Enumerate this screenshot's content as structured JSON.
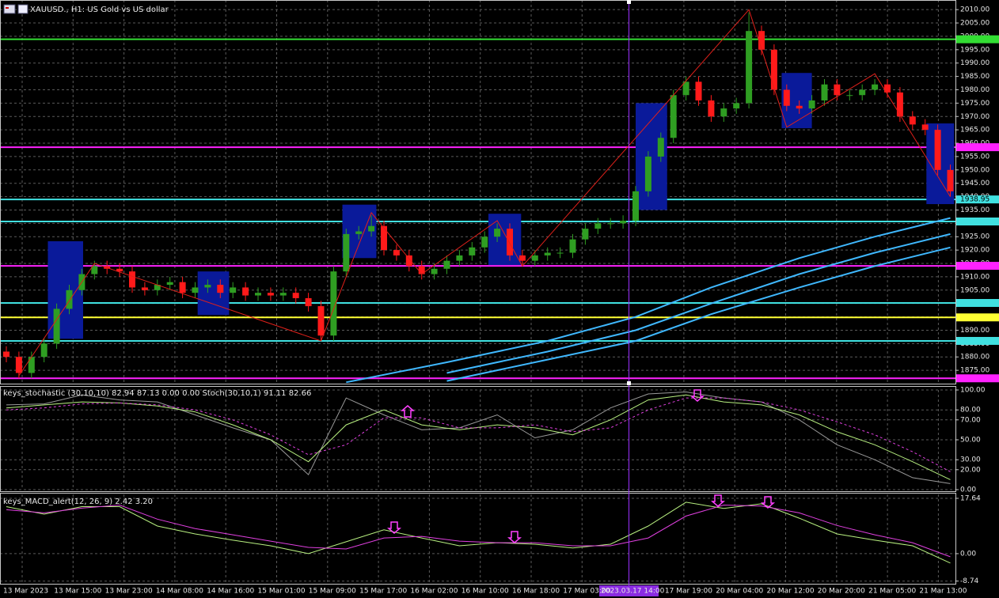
{
  "header": {
    "title": "XAUUSD., H1:  US Gold vs US dollar"
  },
  "x_axis": {
    "labels": [
      "13 Mar 2023",
      "13 Mar 15:00",
      "13 Mar 23:00",
      "14 Mar 08:00",
      "14 Mar 16:00",
      "15 Mar 01:00",
      "15 Mar 09:00",
      "15 Mar 17:00",
      "16 Mar 02:00",
      "16 Mar 10:00",
      "16 Mar 18:00",
      "17 Mar 03:00",
      "17 Mar 19:00",
      "20 Mar 04:00",
      "20 Mar 12:00",
      "20 Mar 20:00",
      "21 Mar 05:00",
      "21 Mar 13:00"
    ],
    "crosshair_label": "2023.03.17 14:00"
  },
  "chart_data": [
    {
      "type": "candlestick",
      "up_color": "#2f9e22",
      "down_color": "#ff1a1a",
      "grid": true,
      "ylim": [
        1870.3,
        2013.6
      ],
      "yticks": [
        {
          "value": 1875,
          "label": "1875.00"
        },
        {
          "value": 1880,
          "label": "1880.00"
        },
        {
          "value": 1885,
          "label": "1885.00"
        },
        {
          "value": 1890,
          "label": "1890.00"
        },
        {
          "value": 1895,
          "label": "1895.00"
        },
        {
          "value": 1900,
          "label": "1900.00"
        },
        {
          "value": 1905,
          "label": "1905.00"
        },
        {
          "value": 1910,
          "label": "1910.00"
        },
        {
          "value": 1915,
          "label": "1915.00"
        },
        {
          "value": 1920,
          "label": "1920.00"
        },
        {
          "value": 1925,
          "label": "1925.00"
        },
        {
          "value": 1930,
          "label": "1930.00"
        },
        {
          "value": 1935,
          "label": "1935.00"
        },
        {
          "value": 1940,
          "label": "1940.00"
        },
        {
          "value": 1945,
          "label": "1945.00"
        },
        {
          "value": 1950,
          "label": "1950.00"
        },
        {
          "value": 1955,
          "label": "1955.00"
        },
        {
          "value": 1960,
          "label": "1960.00"
        },
        {
          "value": 1965,
          "label": "1965.00"
        },
        {
          "value": 1970,
          "label": "1970.00"
        },
        {
          "value": 1975,
          "label": "1975.00"
        },
        {
          "value": 1980,
          "label": "1980.00"
        },
        {
          "value": 1985,
          "label": "1985.00"
        },
        {
          "value": 1990,
          "label": "1990.00"
        },
        {
          "value": 1995,
          "label": "1995.00"
        },
        {
          "value": 2000,
          "label": "2000.00"
        },
        {
          "value": 2005,
          "label": "2005.00"
        },
        {
          "value": 2010,
          "label": "2010.00"
        }
      ],
      "open": [
        1882,
        1880,
        1874,
        1880,
        1885,
        1898,
        1905,
        1911,
        1914,
        1913,
        1912,
        1906,
        1905,
        1907,
        1908,
        1904,
        1906,
        1907,
        1904,
        1906,
        1903,
        1904,
        1903,
        1904,
        1902,
        1899,
        1888,
        1912,
        1926,
        1927,
        1929,
        1920,
        1918,
        1914,
        1911,
        1913,
        1916,
        1918,
        1921,
        1925,
        1928,
        1918,
        1916,
        1918,
        1919,
        1919,
        1924,
        1928,
        1930,
        1930,
        1931,
        1942,
        1955,
        1962,
        1978,
        1983,
        1976,
        1970,
        1973,
        1975,
        2002,
        1995,
        1980,
        1974,
        1973,
        1976,
        1982,
        1978,
        1978,
        1980,
        1982,
        1979,
        1970,
        1967,
        1965,
        1950
      ],
      "high": [
        1884,
        1882,
        1882,
        1887,
        1900,
        1907,
        1913,
        1916,
        1916,
        1915,
        1914,
        1908,
        1909,
        1910,
        1910,
        1908,
        1909,
        1909,
        1908,
        1908,
        1906,
        1906,
        1906,
        1906,
        1904,
        1901,
        1914,
        1928,
        1929,
        1933,
        1931,
        1922,
        1920,
        1916,
        1915,
        1918,
        1920,
        1923,
        1927,
        1930,
        1930,
        1920,
        1920,
        1921,
        1921,
        1926,
        1930,
        1932,
        1932,
        1933,
        1944,
        1957,
        1964,
        1980,
        1985,
        1985,
        1978,
        1975,
        1977,
        2009,
        2004,
        1997,
        1982,
        1976,
        1978,
        1984,
        1984,
        1980,
        1982,
        1984,
        1984,
        1981,
        1972,
        1969,
        1967,
        1952
      ],
      "low": [
        1878,
        1872,
        1872,
        1878,
        1883,
        1896,
        1903,
        1909,
        1911,
        1910,
        1904,
        1903,
        1903,
        1905,
        1902,
        1902,
        1904,
        1902,
        1902,
        1901,
        1901,
        1901,
        1901,
        1900,
        1897,
        1886,
        1886,
        1910,
        1924,
        1925,
        1918,
        1916,
        1912,
        1909,
        1909,
        1911,
        1914,
        1916,
        1919,
        1923,
        1916,
        1914,
        1914,
        1916,
        1917,
        1917,
        1922,
        1926,
        1928,
        1928,
        1929,
        1940,
        1953,
        1960,
        1976,
        1974,
        1968,
        1968,
        1971,
        1973,
        1993,
        1978,
        1972,
        1971,
        1971,
        1974,
        1976,
        1976,
        1976,
        1978,
        1977,
        1968,
        1965,
        1963,
        1948,
        1940
      ],
      "close": [
        1880,
        1874,
        1880,
        1885,
        1898,
        1905,
        1911,
        1914,
        1913,
        1912,
        1906,
        1905,
        1907,
        1908,
        1904,
        1906,
        1907,
        1904,
        1906,
        1903,
        1904,
        1903,
        1904,
        1902,
        1899,
        1888,
        1912,
        1926,
        1927,
        1929,
        1920,
        1918,
        1914,
        1911,
        1913,
        1916,
        1918,
        1921,
        1925,
        1928,
        1918,
        1916,
        1918,
        1919,
        1919,
        1924,
        1928,
        1930,
        1930,
        1931,
        1942,
        1955,
        1962,
        1978,
        1983,
        1976,
        1970,
        1973,
        1975,
        2002,
        1995,
        1980,
        1974,
        1973,
        1976,
        1982,
        1978,
        1978,
        1980,
        1982,
        1979,
        1970,
        1967,
        1965,
        1950,
        1942
      ],
      "levels": [
        {
          "value": 1998.9,
          "color": "#33dd33"
        },
        {
          "value": 1958.5,
          "color": "#ff22ff"
        },
        {
          "value": 1938.95,
          "color": "#40e0e0",
          "label": "1938.95"
        },
        {
          "value": 1930.7,
          "color": "#40e0e0"
        },
        {
          "value": 1914.1,
          "color": "#ff22ff"
        },
        {
          "value": 1900.2,
          "color": "#40e0e0"
        },
        {
          "value": 1894.8,
          "color": "#ffff33"
        },
        {
          "value": 1886,
          "color": "#40e0e0"
        },
        {
          "value": 1872,
          "color": "#ff22ff"
        }
      ],
      "boxes": [
        {
          "x": [
            3.3,
            6.1
          ],
          "y": [
            1886.8,
            1923.3
          ]
        },
        {
          "x": [
            15.2,
            17.7
          ],
          "y": [
            1895.7,
            1912
          ]
        },
        {
          "x": [
            26.7,
            29.4
          ],
          "y": [
            1917,
            1937
          ]
        },
        {
          "x": [
            38.3,
            40.9
          ],
          "y": [
            1914.4,
            1933.6
          ]
        },
        {
          "x": [
            50,
            52.5
          ],
          "y": [
            1935,
            1975
          ]
        },
        {
          "x": [
            61.6,
            64
          ],
          "y": [
            1965.6,
            1986.3
          ]
        },
        {
          "x": [
            73.1,
            75.3
          ],
          "y": [
            1937.2,
            1967.4
          ]
        }
      ],
      "box_color": "#0a1a9a",
      "zigzag": {
        "color": "#e0201a",
        "x": [
          1,
          7,
          25,
          29,
          33,
          39,
          41,
          59,
          62,
          69,
          75
        ],
        "values": [
          1873,
          1915,
          1886,
          1934,
          1911,
          1931,
          1914,
          2010,
          1966,
          1986,
          1940
        ]
      },
      "series": [
        {
          "color": "#3fb8ff",
          "x": [
            27,
            35,
            43,
            50,
            56,
            63,
            69,
            75
          ],
          "values": [
            1870.5,
            1878,
            1886,
            1895,
            1906,
            1917,
            1925,
            1932
          ]
        },
        {
          "color": "#3fb8ff",
          "x": [
            27,
            35,
            43,
            50,
            56,
            63,
            69,
            75
          ],
          "values": [
            null,
            1874,
            1882,
            1890,
            1900,
            1911,
            1919,
            1926
          ]
        },
        {
          "color": "#3fb8ff",
          "x": [
            27,
            35,
            43,
            50,
            56,
            63,
            69,
            75
          ],
          "values": [
            null,
            1871,
            1879,
            1886,
            1896,
            1906,
            1914,
            1921
          ]
        }
      ]
    },
    {
      "type": "line",
      "title": "keys_stochastic (30,10,10) 82.94 87.13 0.00 0.00 Stoch(30,10,1) 91.11 82.66",
      "grid": true,
      "ylim": [
        0,
        100
      ],
      "yticks": [
        {
          "value": 100,
          "label": "100.00"
        },
        {
          "value": 80,
          "label": "80.00"
        },
        {
          "value": 70,
          "label": "70.00"
        },
        {
          "value": 50,
          "label": "50.00"
        },
        {
          "value": 30,
          "label": "30.00"
        },
        {
          "value": 20,
          "label": "20.00"
        },
        {
          "value": 0,
          "label": "0.00"
        }
      ],
      "series": [
        {
          "color": "#9a9a9a",
          "x": [
            0,
            3,
            6,
            9,
            12,
            15,
            18,
            21,
            24,
            27,
            30,
            33,
            36,
            39,
            42,
            45,
            48,
            51,
            54,
            57,
            60,
            63,
            66,
            69,
            72,
            75
          ],
          "values": [
            85,
            86,
            95,
            90,
            88,
            75,
            62,
            50,
            15,
            92,
            75,
            60,
            62,
            75,
            52,
            60,
            82,
            96,
            98,
            92,
            88,
            70,
            45,
            30,
            12,
            6
          ]
        },
        {
          "color": "#b8f080",
          "x": [
            0,
            3,
            6,
            9,
            12,
            15,
            18,
            21,
            24,
            27,
            30,
            33,
            36,
            39,
            42,
            45,
            48,
            51,
            54,
            57,
            60,
            63,
            66,
            69,
            72,
            75
          ],
          "values": [
            82,
            85,
            88,
            87,
            84,
            78,
            65,
            50,
            28,
            65,
            80,
            65,
            60,
            65,
            62,
            55,
            70,
            90,
            95,
            88,
            85,
            75,
            58,
            45,
            28,
            10
          ]
        },
        {
          "color": "#e040e0",
          "dash": true,
          "x": [
            0,
            3,
            6,
            9,
            12,
            15,
            18,
            21,
            24,
            27,
            30,
            33,
            36,
            39,
            42,
            45,
            48,
            51,
            54,
            57,
            60,
            63,
            66,
            69,
            72,
            75
          ],
          "values": [
            80,
            82,
            86,
            87,
            85,
            80,
            70,
            55,
            35,
            45,
            72,
            72,
            62,
            62,
            65,
            58,
            62,
            80,
            92,
            92,
            88,
            80,
            68,
            55,
            38,
            18
          ]
        }
      ]
    },
    {
      "type": "line",
      "title": "keys_MACD_alert(12, 26, 9) 2.42 3.20",
      "grid": true,
      "ylim": [
        -9.6,
        18.9
      ],
      "yticks": [
        {
          "value": 17.64,
          "label": "17.64"
        },
        {
          "value": 0,
          "label": "0.00"
        },
        {
          "value": -8.74,
          "label": "-8.74"
        }
      ],
      "series": [
        {
          "color": "#b8f080",
          "x": [
            0,
            3,
            6,
            9,
            12,
            15,
            18,
            21,
            24,
            27,
            30,
            33,
            36,
            39,
            42,
            45,
            48,
            51,
            54,
            57,
            60,
            63,
            66,
            69,
            72,
            75
          ],
          "values": [
            15,
            12.6,
            15,
            15,
            8.8,
            6.3,
            4.3,
            2.5,
            0,
            3.8,
            7.6,
            5,
            2.5,
            3.5,
            3,
            1.8,
            3,
            8.8,
            16.4,
            14.4,
            15.9,
            11.3,
            6.3,
            4.3,
            2.5,
            -3
          ]
        },
        {
          "color": "#e040e0",
          "x": [
            0,
            3,
            6,
            9,
            12,
            15,
            18,
            21,
            24,
            27,
            30,
            33,
            36,
            39,
            42,
            45,
            48,
            51,
            54,
            57,
            60,
            63,
            66,
            69,
            72,
            75
          ],
          "values": [
            14,
            13,
            14.5,
            15.5,
            11,
            8,
            6,
            4,
            2,
            1.5,
            5,
            5.5,
            4,
            3.5,
            3.5,
            2.5,
            2.5,
            5,
            12,
            15.5,
            15.2,
            13,
            9,
            6,
            3.5,
            -1
          ]
        }
      ]
    }
  ]
}
